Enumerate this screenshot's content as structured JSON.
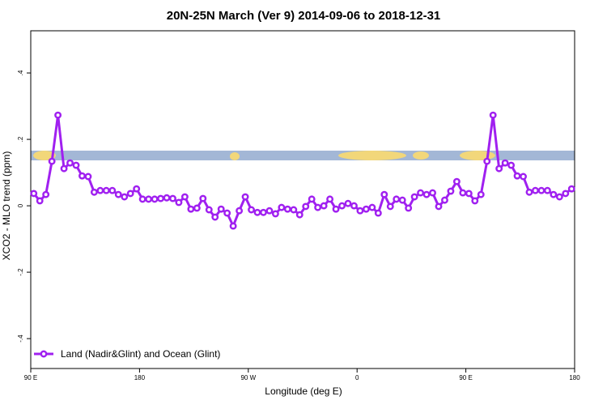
{
  "chart_data": {
    "type": "line",
    "title": "20N-25N March (Ver 9)   2014-09-06 to 2018-12-31",
    "xlabel": "Longitude (deg E)",
    "ylabel": "XCO2 - MLO trend (ppm)",
    "xlim": [
      90,
      540
    ],
    "ylim": [
      -0.49,
      0.527
    ],
    "xticks": [
      {
        "value": 90,
        "label": "90 E"
      },
      180,
      {
        "value": 270,
        "label": "90 W"
      },
      {
        "value": 360,
        "label": "0"
      },
      {
        "value": 450,
        "label": "90 E"
      },
      {
        "value": 540,
        "label": "180"
      }
    ],
    "yticks": [
      {
        "value": -0.4,
        "label": "-.4"
      },
      {
        "value": -0.2,
        "label": "-.2"
      },
      0,
      {
        "value": 0.2,
        "label": ".2"
      },
      {
        "value": 0.4,
        "label": ".4"
      }
    ],
    "legend": "bottom-left",
    "x": [
      92.5,
      97.5,
      102.5,
      107.5,
      112.5,
      117.5,
      122.5,
      127.5,
      132.5,
      137.5,
      142.5,
      147.5,
      152.5,
      157.5,
      162.5,
      167.5,
      172.5,
      177.5,
      182.5,
      187.5,
      192.5,
      197.5,
      202.5,
      207.5,
      212.5,
      217.5,
      222.5,
      227.5,
      232.5,
      237.5,
      242.5,
      247.5,
      252.5,
      257.5,
      262.5,
      267.5,
      272.5,
      277.5,
      282.5,
      287.5,
      292.5,
      297.5,
      302.5,
      307.5,
      312.5,
      317.5,
      322.5,
      327.5,
      332.5,
      337.5,
      342.5,
      347.5,
      352.5,
      357.5,
      362.5,
      367.5,
      372.5,
      377.5,
      382.5,
      387.5,
      392.5,
      397.5,
      402.5,
      407.5,
      412.5,
      417.5,
      422.5,
      427.5,
      432.5,
      437.5,
      442.5,
      447.5,
      452.5,
      457.5,
      462.5,
      467.5,
      472.5,
      477.5,
      482.5,
      487.5,
      492.5,
      497.5,
      502.5,
      507.5,
      512.5,
      517.5,
      522.5,
      527.5,
      532.5,
      537.5
    ],
    "series": [
      {
        "name": "Land (Nadir&Glint) and Ocean (Glint)",
        "color": "#a020f0",
        "values": [
          0.037,
          0.015,
          0.034,
          0.134,
          0.273,
          0.112,
          0.129,
          0.122,
          0.09,
          0.088,
          0.041,
          0.046,
          0.046,
          0.046,
          0.034,
          0.027,
          0.037,
          0.051,
          0.02,
          0.02,
          0.02,
          0.022,
          0.024,
          0.022,
          0.01,
          0.027,
          -0.01,
          -0.007,
          0.022,
          -0.012,
          -0.034,
          -0.01,
          -0.022,
          -0.061,
          -0.015,
          0.027,
          -0.012,
          -0.02,
          -0.02,
          -0.015,
          -0.024,
          -0.005,
          -0.01,
          -0.012,
          -0.027,
          -0.002,
          0.02,
          -0.005,
          0,
          0.02,
          -0.01,
          0,
          0.007,
          0,
          -0.015,
          -0.01,
          -0.005,
          -0.022,
          0.034,
          -0.002,
          0.02,
          0.017,
          -0.007,
          0.027,
          0.039,
          0.034,
          0.039,
          -0.002,
          0.017,
          0.044,
          0.073,
          0.039,
          0.037,
          0.015,
          0.034,
          0.134,
          0.273,
          0.112,
          0.129,
          0.122,
          0.09,
          0.088,
          0.041,
          0.046,
          0.046,
          0.046,
          0.034,
          0.027,
          0.037,
          0.051
        ]
      }
    ]
  }
}
